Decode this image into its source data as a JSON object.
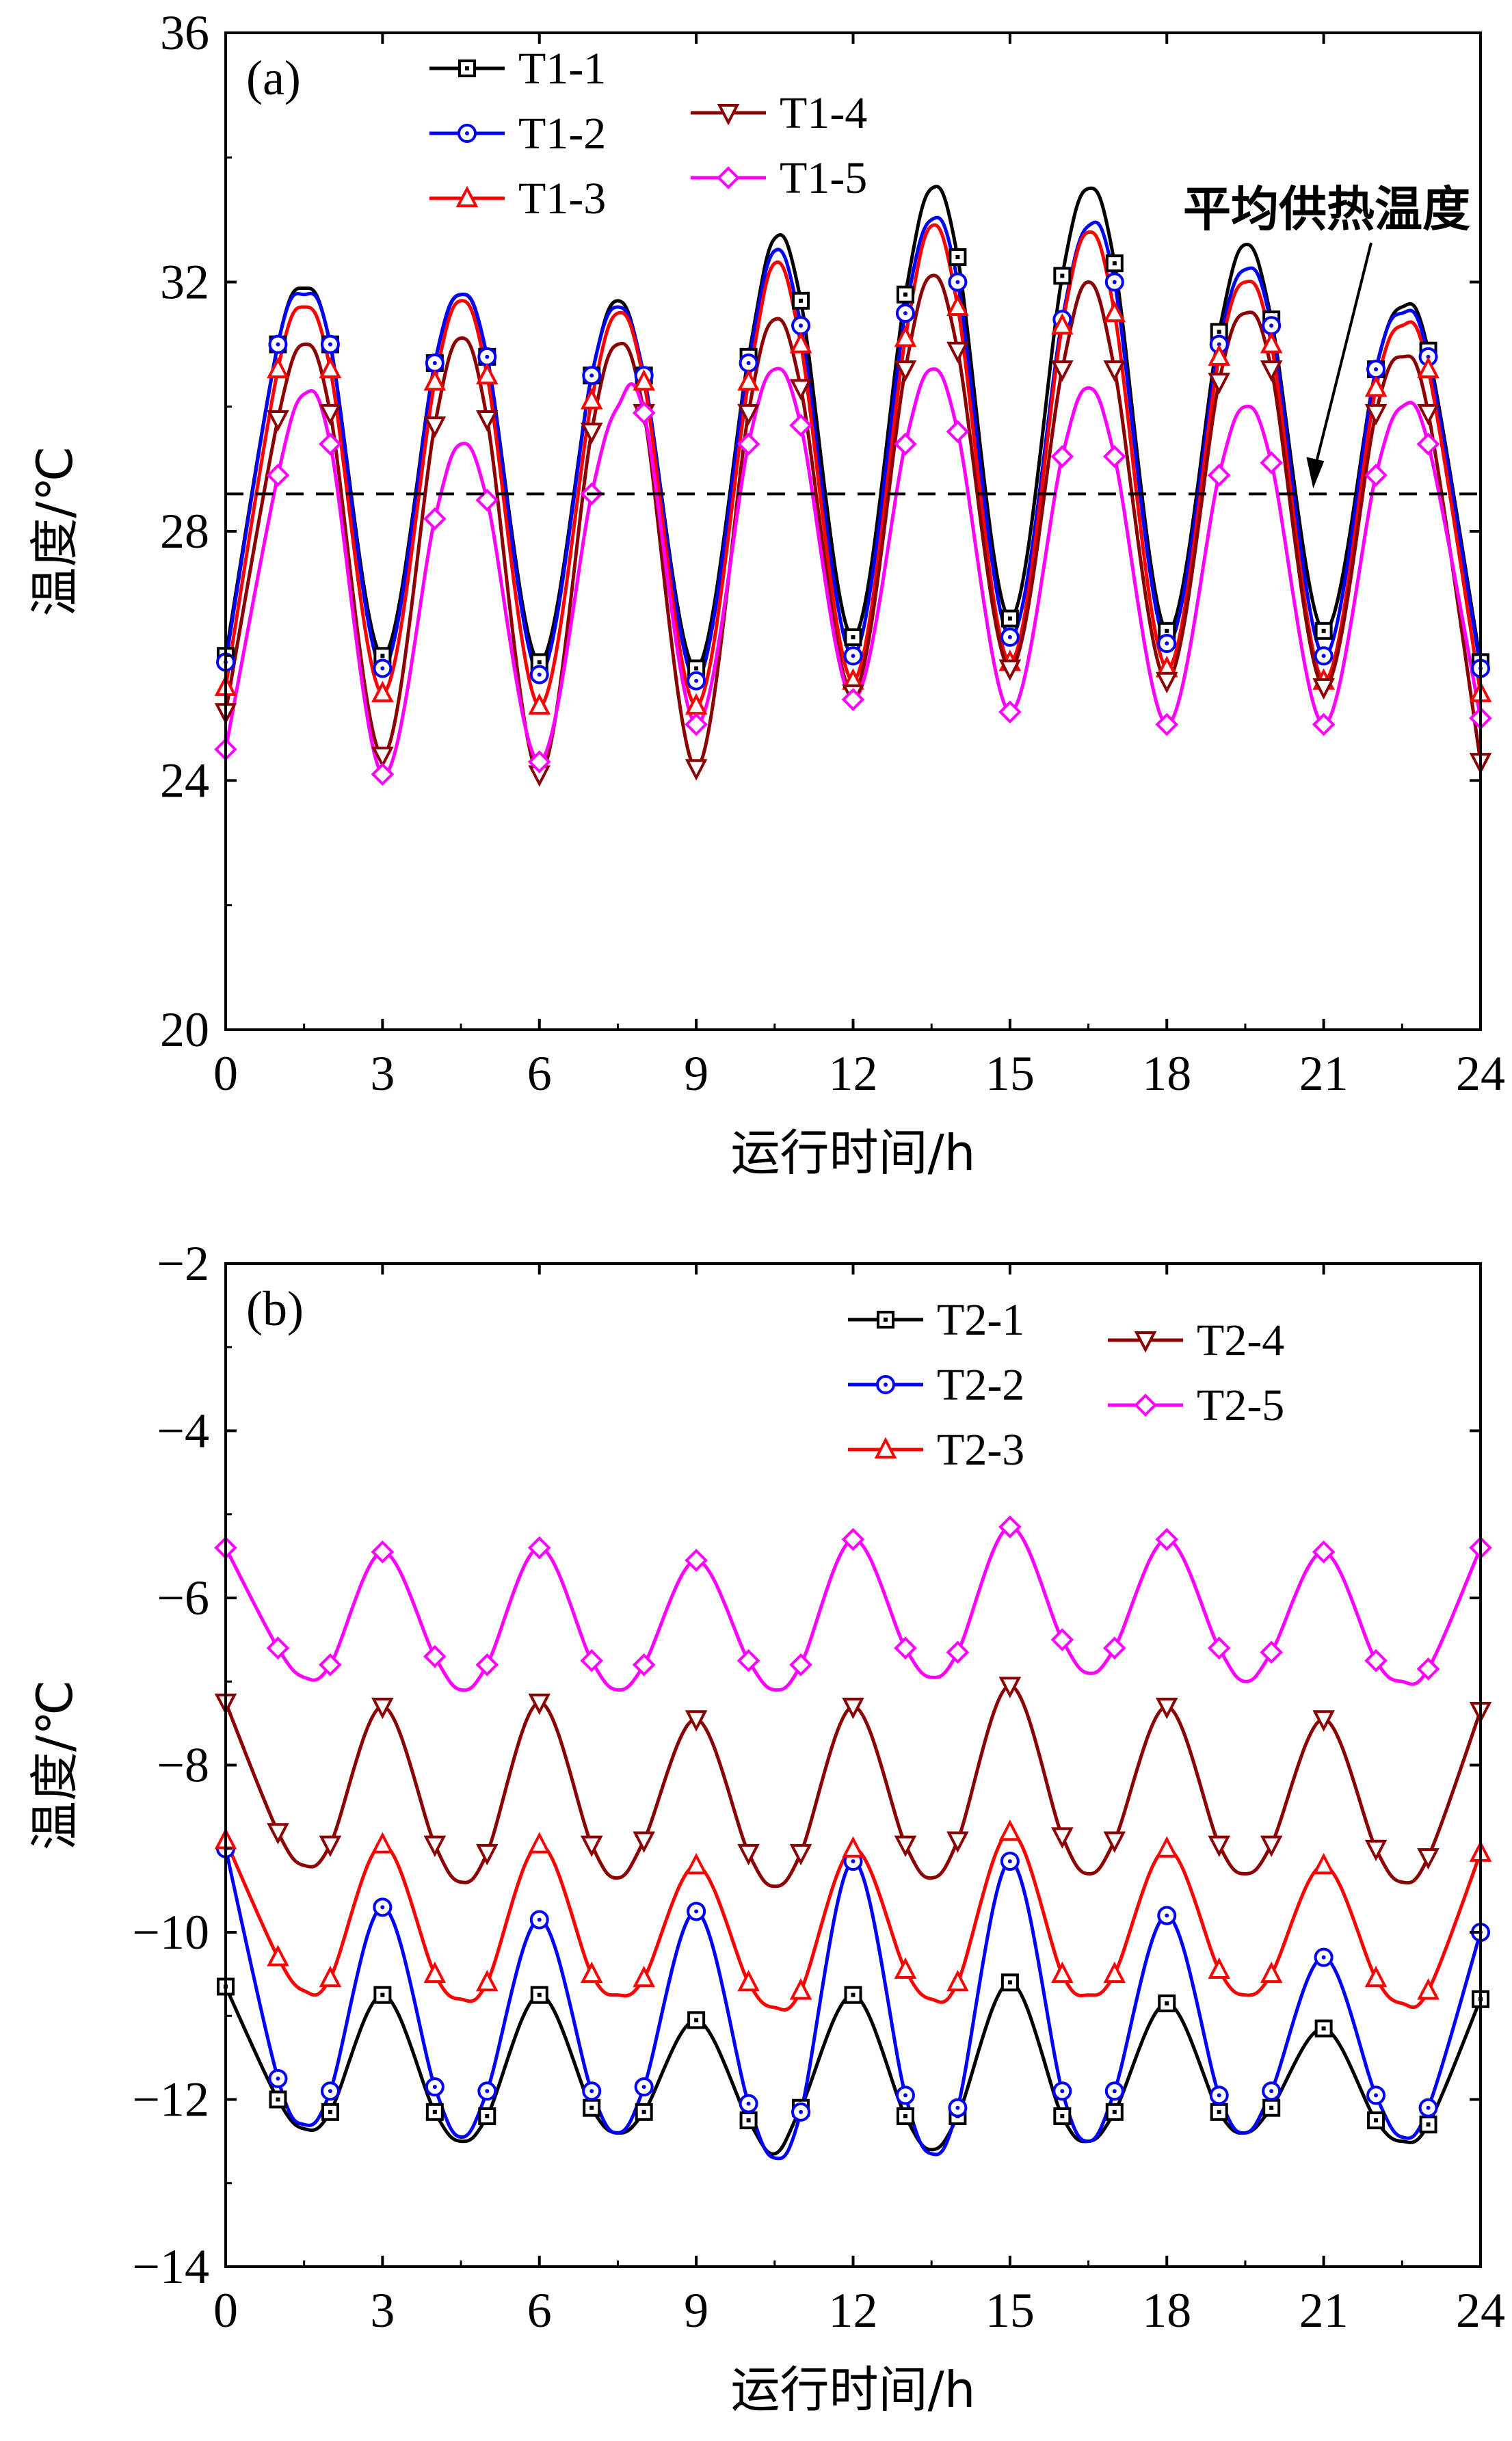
{
  "chart_data": [
    {
      "type": "line",
      "panel_label": "(a)",
      "xlabel": "运行时间/h",
      "ylabel": "温度/℃",
      "xlim": [
        0,
        24
      ],
      "ylim": [
        20,
        36
      ],
      "xticks": [
        0,
        3,
        6,
        9,
        12,
        15,
        18,
        21,
        24
      ],
      "yticks": [
        20,
        24,
        28,
        32,
        36
      ],
      "marker_x": [
        0,
        1,
        2,
        3,
        4,
        5,
        6,
        7,
        8,
        9,
        10,
        11,
        12,
        13,
        14,
        15,
        16,
        17,
        18,
        19,
        20,
        21,
        22,
        23,
        24
      ],
      "series": [
        {
          "name": "T1-1",
          "color": "#000000",
          "marker": "square",
          "values": [
            26.0,
            31.0,
            31.0,
            26.0,
            30.7,
            30.8,
            25.9,
            30.5,
            30.5,
            25.8,
            30.8,
            31.7,
            26.3,
            31.8,
            32.4,
            26.6,
            32.1,
            32.3,
            26.4,
            31.2,
            31.4,
            26.4,
            30.6,
            30.9,
            25.9
          ]
        },
        {
          "name": "T1-2",
          "color": "#0000ff",
          "marker": "circle",
          "values": [
            25.9,
            31.0,
            31.0,
            25.8,
            30.7,
            30.8,
            25.7,
            30.5,
            30.5,
            25.6,
            30.7,
            31.3,
            26.0,
            31.5,
            32.0,
            26.3,
            31.4,
            32.0,
            26.2,
            31.0,
            31.3,
            26.0,
            30.6,
            30.8,
            25.8
          ]
        },
        {
          "name": "T1-3",
          "color": "#ff0000",
          "marker": "triangle-up",
          "values": [
            25.5,
            30.6,
            30.6,
            25.4,
            30.4,
            30.5,
            25.2,
            30.1,
            30.4,
            25.2,
            30.4,
            31.0,
            25.6,
            31.1,
            31.6,
            25.9,
            31.3,
            31.5,
            25.8,
            30.8,
            31.0,
            25.6,
            30.3,
            30.6,
            25.4
          ]
        },
        {
          "name": "T1-4",
          "color": "#8b0000",
          "marker": "triangle-down",
          "values": [
            25.1,
            29.8,
            29.9,
            24.4,
            29.7,
            29.8,
            24.1,
            29.6,
            29.9,
            24.2,
            29.9,
            30.3,
            25.4,
            30.6,
            30.9,
            25.8,
            30.6,
            30.6,
            25.6,
            30.4,
            30.6,
            25.5,
            29.9,
            29.9,
            24.3
          ]
        },
        {
          "name": "T1-5",
          "color": "#ff00ff",
          "marker": "diamond",
          "values": [
            24.5,
            28.9,
            29.4,
            24.1,
            28.2,
            28.5,
            24.3,
            28.6,
            29.9,
            24.9,
            29.4,
            29.7,
            25.3,
            29.4,
            29.6,
            25.1,
            29.2,
            29.2,
            24.9,
            28.9,
            29.1,
            24.9,
            28.9,
            29.4,
            25.0
          ]
        }
      ],
      "smooth_peaks": [
        {
          "x": 1.5,
          "values": [
            31.9,
            31.8,
            31.6,
            31.0,
            30.2
          ]
        },
        {
          "x": 4.5,
          "values": [
            31.8,
            31.8,
            31.7,
            31.1,
            29.4
          ]
        },
        {
          "x": 7.5,
          "values": [
            31.7,
            31.6,
            31.5,
            31.0,
            30.0
          ]
        },
        {
          "x": 10.5,
          "values": [
            32.7,
            32.5,
            32.3,
            31.4,
            30.6
          ]
        },
        {
          "x": 13.5,
          "values": [
            33.5,
            33.0,
            32.9,
            32.1,
            30.6
          ]
        },
        {
          "x": 16.5,
          "values": [
            33.5,
            32.9,
            32.8,
            32.0,
            30.3
          ]
        },
        {
          "x": 19.5,
          "values": [
            32.6,
            32.2,
            32.0,
            31.5,
            30.0
          ]
        },
        {
          "x": 22.5,
          "values": [
            31.6,
            31.5,
            31.3,
            30.8,
            30.0
          ]
        }
      ],
      "reference_line": {
        "y": 28.6,
        "style": "dashed"
      },
      "annotation": {
        "text": "平均供热温度",
        "points_to_x": 20.8,
        "points_to_y": 28.6
      },
      "grid": false,
      "legend_position": "top-left"
    },
    {
      "type": "line",
      "panel_label": "(b)",
      "xlabel": "运行时间/h",
      "ylabel": "温度/℃",
      "xlim": [
        0,
        24
      ],
      "ylim": [
        -14,
        -2
      ],
      "xticks": [
        0,
        3,
        6,
        9,
        12,
        15,
        18,
        21,
        24
      ],
      "yticks": [
        -14,
        -12,
        -10,
        -8,
        -6,
        -4,
        -2
      ],
      "ytick_labels": [
        "−14",
        "−12",
        "−10",
        "−8",
        "−6",
        "−4",
        "−2"
      ],
      "marker_x": [
        0,
        1,
        2,
        3,
        4,
        5,
        6,
        7,
        8,
        9,
        10,
        11,
        12,
        13,
        14,
        15,
        16,
        17,
        18,
        19,
        20,
        21,
        22,
        23,
        24
      ],
      "series": [
        {
          "name": "T2-1",
          "color": "#000000",
          "marker": "square",
          "values": [
            -10.65,
            -12.0,
            -12.15,
            -10.75,
            -12.15,
            -12.2,
            -10.75,
            -12.1,
            -12.15,
            -11.05,
            -12.25,
            -12.1,
            -10.75,
            -12.2,
            -12.2,
            -10.6,
            -12.2,
            -12.15,
            -10.85,
            -12.15,
            -12.1,
            -11.15,
            -12.25,
            -12.3,
            -10.8
          ]
        },
        {
          "name": "T2-2",
          "color": "#0000ff",
          "marker": "circle",
          "values": [
            -9.0,
            -11.75,
            -11.9,
            -9.7,
            -11.85,
            -11.9,
            -9.85,
            -11.9,
            -11.85,
            -9.75,
            -12.05,
            -12.15,
            -9.15,
            -11.95,
            -12.1,
            -9.15,
            -11.9,
            -11.9,
            -9.8,
            -11.95,
            -11.9,
            -10.3,
            -11.95,
            -12.1,
            -10.0
          ]
        },
        {
          "name": "T2-3",
          "color": "#ff0000",
          "marker": "triangle-up",
          "values": [
            -8.9,
            -10.3,
            -10.55,
            -8.95,
            -10.5,
            -10.6,
            -8.95,
            -10.5,
            -10.55,
            -9.2,
            -10.6,
            -10.7,
            -9.0,
            -10.45,
            -10.6,
            -8.8,
            -10.5,
            -10.5,
            -9.0,
            -10.45,
            -10.5,
            -9.2,
            -10.55,
            -10.7,
            -9.05
          ]
        },
        {
          "name": "T2-4",
          "color": "#8b0000",
          "marker": "triangle-down",
          "values": [
            -7.25,
            -8.8,
            -8.95,
            -7.3,
            -8.95,
            -9.05,
            -7.25,
            -8.95,
            -8.9,
            -7.45,
            -9.05,
            -9.05,
            -7.3,
            -8.95,
            -8.9,
            -7.05,
            -8.85,
            -8.9,
            -7.3,
            -8.95,
            -8.95,
            -7.45,
            -9.0,
            -9.1,
            -7.35
          ]
        },
        {
          "name": "T2-5",
          "color": "#ff00ff",
          "marker": "diamond",
          "values": [
            -5.4,
            -6.6,
            -6.8,
            -5.45,
            -6.7,
            -6.8,
            -5.4,
            -6.75,
            -6.8,
            -5.55,
            -6.75,
            -6.8,
            -5.3,
            -6.6,
            -6.65,
            -5.15,
            -6.5,
            -6.6,
            -5.3,
            -6.6,
            -6.65,
            -5.45,
            -6.75,
            -6.85,
            -5.4
          ]
        }
      ],
      "smooth_troughs": [
        {
          "x": 1.5,
          "values": [
            -12.35,
            -12.3,
            -10.7,
            -9.2,
            -6.95
          ]
        },
        {
          "x": 4.5,
          "values": [
            -12.5,
            -12.45,
            -10.8,
            -9.4,
            -7.1
          ]
        },
        {
          "x": 7.5,
          "values": [
            -12.4,
            -12.4,
            -10.75,
            -9.35,
            -7.1
          ]
        },
        {
          "x": 10.5,
          "values": [
            -12.65,
            -12.7,
            -10.9,
            -9.45,
            -7.1
          ]
        },
        {
          "x": 13.5,
          "values": [
            -12.6,
            -12.65,
            -10.8,
            -9.35,
            -6.95
          ]
        },
        {
          "x": 16.5,
          "values": [
            -12.5,
            -12.5,
            -10.75,
            -9.3,
            -6.9
          ]
        },
        {
          "x": 19.5,
          "values": [
            -12.4,
            -12.4,
            -10.75,
            -9.3,
            -7.0
          ]
        },
        {
          "x": 22.5,
          "values": [
            -12.5,
            -12.45,
            -10.85,
            -9.4,
            -7.0
          ]
        }
      ],
      "grid": false,
      "legend_position": "top-right"
    }
  ]
}
